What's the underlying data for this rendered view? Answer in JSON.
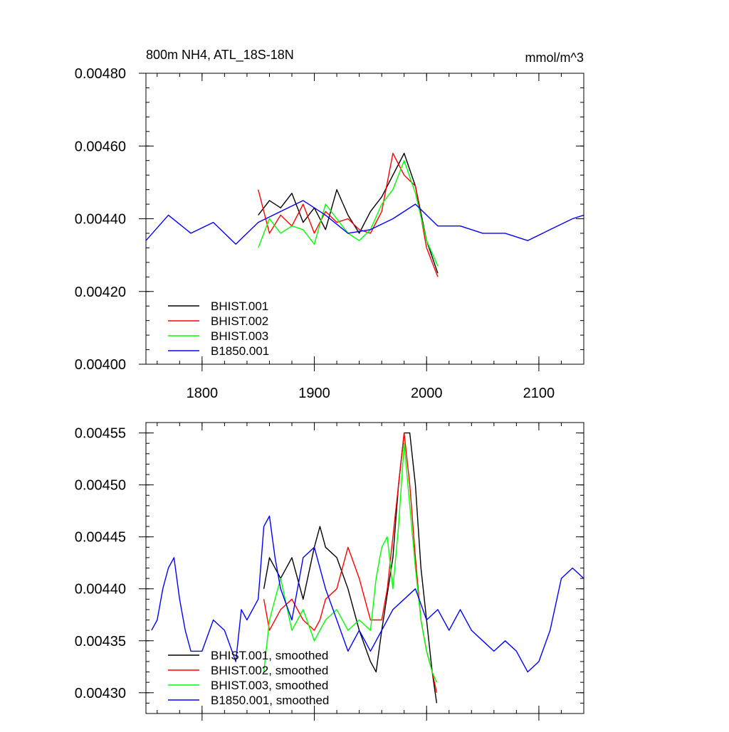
{
  "chart_data": [
    {
      "type": "line",
      "title_left": "800m NH4, ATL_18S-18N",
      "title_right": "mmol/m^3",
      "xlim": [
        1750,
        2140
      ],
      "ylim": [
        0.004,
        0.0048
      ],
      "x_ticks": [
        1800,
        1900,
        2000,
        2100
      ],
      "x_tick_labels": [
        "1800",
        "1900",
        "2000",
        "2100"
      ],
      "y_ticks": [
        0.004,
        0.0042,
        0.0044,
        0.0046,
        0.0048
      ],
      "y_tick_labels": [
        "0.00400",
        "0.00420",
        "0.00440",
        "0.00460",
        "0.00480"
      ],
      "legend_position": "bottom-left",
      "series": [
        {
          "name": "BHIST.001",
          "color": "#000000",
          "x": [
            1850,
            1860,
            1870,
            1880,
            1890,
            1900,
            1910,
            1920,
            1930,
            1940,
            1950,
            1960,
            1970,
            1980,
            1990,
            2000,
            2010
          ],
          "values": [
            0.00441,
            0.00445,
            0.00443,
            0.00447,
            0.00439,
            0.00443,
            0.00437,
            0.00448,
            0.00441,
            0.00436,
            0.00442,
            0.00446,
            0.00452,
            0.00458,
            0.00449,
            0.00434,
            0.00425
          ]
        },
        {
          "name": "BHIST.002",
          "color": "#ff0000",
          "x": [
            1850,
            1860,
            1870,
            1880,
            1890,
            1900,
            1910,
            1920,
            1930,
            1940,
            1950,
            1960,
            1970,
            1980,
            1990,
            2000,
            2010
          ],
          "values": [
            0.00448,
            0.00436,
            0.00441,
            0.00438,
            0.00444,
            0.00436,
            0.00442,
            0.00439,
            0.0044,
            0.00437,
            0.00436,
            0.00442,
            0.00458,
            0.00452,
            0.00449,
            0.00432,
            0.00424
          ]
        },
        {
          "name": "BHIST.003",
          "color": "#00ff00",
          "x": [
            1850,
            1860,
            1870,
            1880,
            1890,
            1900,
            1910,
            1920,
            1930,
            1940,
            1950,
            1960,
            1970,
            1980,
            1990,
            2000,
            2010
          ],
          "values": [
            0.00432,
            0.0044,
            0.00436,
            0.00438,
            0.00437,
            0.00433,
            0.00444,
            0.0044,
            0.00436,
            0.00434,
            0.00437,
            0.00444,
            0.00448,
            0.00456,
            0.00447,
            0.00434,
            0.00427
          ]
        },
        {
          "name": "B1850.001",
          "color": "#0000ff",
          "x": [
            1750,
            1770,
            1790,
            1810,
            1830,
            1850,
            1870,
            1890,
            1910,
            1930,
            1950,
            1970,
            1990,
            2010,
            2030,
            2050,
            2070,
            2090,
            2110,
            2130,
            2140
          ],
          "values": [
            0.00434,
            0.00441,
            0.00436,
            0.00439,
            0.00433,
            0.00439,
            0.00442,
            0.00445,
            0.00441,
            0.00436,
            0.00437,
            0.0044,
            0.00444,
            0.00438,
            0.00438,
            0.00436,
            0.00436,
            0.00434,
            0.00437,
            0.0044,
            0.00441
          ]
        }
      ]
    },
    {
      "type": "line",
      "xlim": [
        1750,
        2140
      ],
      "ylim": [
        0.00428,
        0.00456
      ],
      "x_ticks": [
        1800,
        1900,
        2000,
        2100
      ],
      "y_ticks": [
        0.0043,
        0.00435,
        0.0044,
        0.00445,
        0.0045,
        0.00455
      ],
      "y_tick_labels": [
        "0.00430",
        "0.00435",
        "0.00440",
        "0.00445",
        "0.00450",
        "0.00455"
      ],
      "legend_position": "bottom-left",
      "series": [
        {
          "name": "BHIST.001, smoothed",
          "color": "#000000",
          "x": [
            1855,
            1860,
            1870,
            1880,
            1890,
            1900,
            1905,
            1910,
            1920,
            1930,
            1940,
            1950,
            1955,
            1960,
            1970,
            1975,
            1980,
            1985,
            1990,
            1995,
            2000,
            2005,
            2009
          ],
          "values": [
            0.0044,
            0.00443,
            0.00441,
            0.00443,
            0.00439,
            0.00444,
            0.00446,
            0.00444,
            0.00443,
            0.0044,
            0.00436,
            0.00433,
            0.00432,
            0.00436,
            0.00443,
            0.0045,
            0.00455,
            0.00455,
            0.0045,
            0.00442,
            0.00437,
            0.00432,
            0.00429
          ]
        },
        {
          "name": "BHIST.002, smoothed",
          "color": "#ff0000",
          "x": [
            1855,
            1860,
            1870,
            1880,
            1890,
            1900,
            1905,
            1910,
            1920,
            1930,
            1940,
            1950,
            1955,
            1960,
            1965,
            1970,
            1975,
            1980,
            1985,
            1990,
            1995,
            2000,
            2005,
            2009
          ],
          "values": [
            0.00439,
            0.00436,
            0.00438,
            0.00439,
            0.00437,
            0.00436,
            0.00437,
            0.00439,
            0.0044,
            0.00444,
            0.00441,
            0.00437,
            0.00437,
            0.00437,
            0.0044,
            0.00445,
            0.0045,
            0.00455,
            0.0045,
            0.00443,
            0.00437,
            0.00434,
            0.00432,
            0.0043
          ]
        },
        {
          "name": "BHIST.003, smoothed",
          "color": "#00ff00",
          "x": [
            1855,
            1860,
            1870,
            1880,
            1890,
            1900,
            1905,
            1910,
            1920,
            1930,
            1940,
            1950,
            1955,
            1960,
            1965,
            1970,
            1975,
            1980,
            1985,
            1990,
            1995,
            2000,
            2005,
            2009
          ],
          "values": [
            0.00432,
            0.00437,
            0.00441,
            0.00436,
            0.00438,
            0.00435,
            0.00436,
            0.00437,
            0.00438,
            0.00436,
            0.00437,
            0.00436,
            0.00441,
            0.00444,
            0.00445,
            0.0044,
            0.00446,
            0.00454,
            0.00448,
            0.00442,
            0.00437,
            0.00434,
            0.00432,
            0.00431
          ]
        },
        {
          "name": "B1850.001, smoothed",
          "color": "#0000ff",
          "x": [
            1755,
            1760,
            1765,
            1770,
            1775,
            1780,
            1785,
            1790,
            1800,
            1810,
            1820,
            1830,
            1835,
            1840,
            1850,
            1855,
            1860,
            1865,
            1870,
            1880,
            1890,
            1900,
            1910,
            1920,
            1930,
            1940,
            1950,
            1960,
            1970,
            1980,
            1990,
            2000,
            2010,
            2020,
            2030,
            2040,
            2050,
            2060,
            2070,
            2080,
            2090,
            2100,
            2110,
            2120,
            2130,
            2140
          ],
          "values": [
            0.00436,
            0.00437,
            0.0044,
            0.00442,
            0.00443,
            0.00439,
            0.00436,
            0.00434,
            0.00434,
            0.00437,
            0.00436,
            0.00433,
            0.00438,
            0.00437,
            0.00439,
            0.00446,
            0.00447,
            0.00443,
            0.0044,
            0.00437,
            0.00443,
            0.00444,
            0.0044,
            0.00437,
            0.00434,
            0.00436,
            0.00434,
            0.00436,
            0.00438,
            0.00439,
            0.0044,
            0.00437,
            0.00438,
            0.00436,
            0.00438,
            0.00436,
            0.00435,
            0.00434,
            0.00435,
            0.00434,
            0.00432,
            0.00433,
            0.00436,
            0.00441,
            0.00442,
            0.00441
          ]
        }
      ]
    }
  ]
}
